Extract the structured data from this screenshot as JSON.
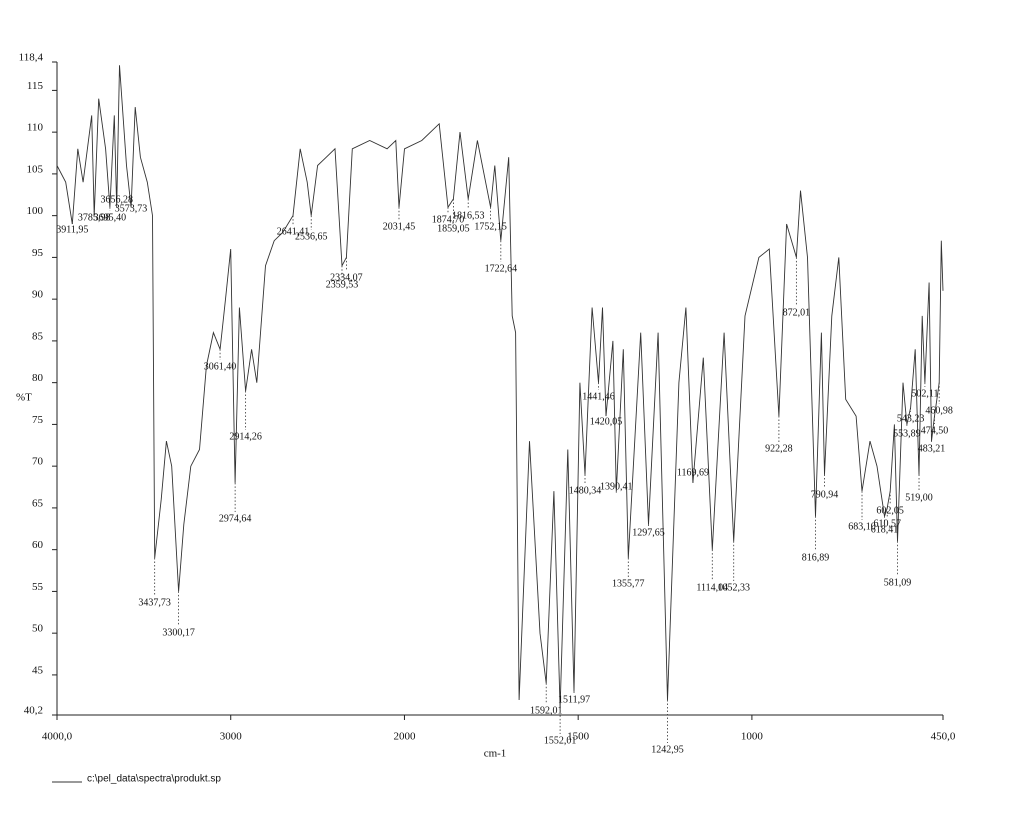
{
  "chart_data": {
    "type": "line",
    "x_label": "cm-1",
    "y_label": "%T",
    "xlim": [
      4000,
      450
    ],
    "x_scale_change": 2000,
    "xticks": [
      {
        "value": 4000,
        "label": "4000,0"
      },
      3000,
      2000,
      1500,
      1000,
      {
        "value": 450,
        "label": "450,0"
      }
    ],
    "ylim": [
      40.2,
      118.4
    ],
    "yticks": [
      {
        "value": 40.2,
        "label": "40,2"
      },
      45,
      50,
      55,
      60,
      65,
      70,
      75,
      80,
      85,
      90,
      95,
      100,
      105,
      110,
      115,
      {
        "value": 118.4,
        "label": "118,4"
      }
    ],
    "x": [
      4000,
      3950,
      3911.95,
      3880,
      3850,
      3800,
      3785.98,
      3760,
      3720,
      3695.4,
      3670,
      3656.28,
      3640,
      3600,
      3573.73,
      3550,
      3520,
      3480,
      3450,
      3437.73,
      3400,
      3370,
      3340,
      3300.17,
      3270,
      3230,
      3180,
      3140,
      3100,
      3061.4,
      3030,
      3000,
      2974.64,
      2950,
      2914.26,
      2880,
      2850,
      2800,
      2750,
      2700,
      2641.41,
      2600,
      2560,
      2536.65,
      2500,
      2450,
      2400,
      2359.53,
      2334.07,
      2300,
      2200,
      2100,
      2050,
      2031.45,
      2000,
      1950,
      1900,
      1874.7,
      1859.05,
      1840,
      1816.53,
      1790,
      1752.15,
      1740,
      1722.64,
      1700,
      1690,
      1680,
      1670,
      1640,
      1610,
      1592.01,
      1570,
      1552.01,
      1530,
      1511.97,
      1495,
      1480.34,
      1460,
      1441.46,
      1430,
      1420.05,
      1400,
      1390.41,
      1370,
      1355.77,
      1320,
      1297.65,
      1270,
      1242.95,
      1210,
      1190,
      1169.69,
      1140,
      1114.04,
      1080,
      1052.33,
      1020,
      980,
      950,
      922.28,
      900,
      872.01,
      860,
      840,
      816.89,
      800,
      790.94,
      770,
      750,
      730,
      700,
      683.1,
      660,
      640,
      618.41,
      610.57,
      602.05,
      590,
      581.09,
      565,
      553.89,
      543.23,
      530,
      519,
      510,
      502.11,
      490,
      483.21,
      474.5,
      460.98,
      455,
      450
    ],
    "series": [
      {
        "name": "c:\\pel_data\\spectra\\produkt.sp",
        "color": "#333333",
        "values": [
          106,
          104,
          99,
          108,
          104,
          112,
          100,
          114,
          108,
          101,
          112,
          101,
          118,
          106,
          101,
          113,
          107,
          104,
          100,
          59,
          66,
          73,
          70,
          55,
          63,
          70,
          72,
          82,
          86,
          84,
          90,
          96,
          68,
          89,
          79,
          84,
          80,
          94,
          97,
          98,
          100,
          108,
          104,
          100,
          106,
          107,
          108,
          94,
          95,
          108,
          109,
          108,
          109,
          101,
          108,
          109,
          111,
          101,
          102,
          110,
          102,
          109,
          101,
          106,
          97,
          107,
          88,
          86,
          42,
          73,
          50,
          44,
          67,
          41,
          72,
          43,
          80,
          69,
          89,
          80,
          89,
          76,
          85,
          67,
          84,
          59,
          86,
          63,
          86,
          42,
          80,
          89,
          68,
          83,
          60,
          86,
          61,
          88,
          95,
          96,
          76,
          99,
          95,
          103,
          95,
          64,
          86,
          69,
          88,
          95,
          78,
          76,
          67,
          73,
          70,
          64,
          65,
          67,
          75,
          61,
          80,
          75,
          77,
          84,
          69,
          88,
          80,
          92,
          73,
          76,
          80,
          97,
          91
        ]
      }
    ],
    "peaks": [
      {
        "value": 3911.95,
        "label": "3911,95"
      },
      {
        "value": 3785.98,
        "label": "3785,98"
      },
      {
        "value": 3695.4,
        "label": "3695,40"
      },
      {
        "value": 3656.28,
        "label": "3656,28"
      },
      {
        "value": 3573.73,
        "label": "3573,73"
      },
      {
        "value": 3437.73,
        "label": "3437,73"
      },
      {
        "value": 3300.17,
        "label": "3300,17"
      },
      {
        "value": 3061.4,
        "label": "3061,40"
      },
      {
        "value": 2974.64,
        "label": "2974,64"
      },
      {
        "value": 2914.26,
        "label": "2914,26"
      },
      {
        "value": 2641.41,
        "label": "2641,41"
      },
      {
        "value": 2536.65,
        "label": "2536,65"
      },
      {
        "value": 2359.53,
        "label": "2359,53"
      },
      {
        "value": 2334.07,
        "label": "2334,07"
      },
      {
        "value": 2031.45,
        "label": "2031,45"
      },
      {
        "value": 1874.7,
        "label": "1874,70"
      },
      {
        "value": 1859.05,
        "label": "1859,05"
      },
      {
        "value": 1816.53,
        "label": "1816,53"
      },
      {
        "value": 1752.15,
        "label": "1752,15"
      },
      {
        "value": 1722.64,
        "label": "1722,64"
      },
      {
        "value": 1592.01,
        "label": "1592,01"
      },
      {
        "value": 1552.01,
        "label": "1552,01"
      },
      {
        "value": 1511.97,
        "label": "1511,97"
      },
      {
        "value": 1480.34,
        "label": "1480,34"
      },
      {
        "value": 1441.46,
        "label": "1441,46"
      },
      {
        "value": 1420.05,
        "label": "1420,05"
      },
      {
        "value": 1390.41,
        "label": "1390,41"
      },
      {
        "value": 1355.77,
        "label": "1355,77"
      },
      {
        "value": 1297.65,
        "label": "1297,65"
      },
      {
        "value": 1242.95,
        "label": "1242,95"
      },
      {
        "value": 1169.69,
        "label": "1169,69"
      },
      {
        "value": 1114.04,
        "label": "1114,04"
      },
      {
        "value": 1052.33,
        "label": "1052,33"
      },
      {
        "value": 922.28,
        "label": "922,28"
      },
      {
        "value": 872.01,
        "label": "872,01"
      },
      {
        "value": 816.89,
        "label": "816,89"
      },
      {
        "value": 790.94,
        "label": "790,94"
      },
      {
        "value": 683.1,
        "label": "683,10"
      },
      {
        "value": 618.41,
        "label": "618,41"
      },
      {
        "value": 610.57,
        "label": "610,57"
      },
      {
        "value": 602.05,
        "label": "602,05"
      },
      {
        "value": 581.09,
        "label": "581,09"
      },
      {
        "value": 553.89,
        "label": "553,89"
      },
      {
        "value": 543.23,
        "label": "543,23"
      },
      {
        "value": 519,
        "label": "519,00"
      },
      {
        "value": 502.11,
        "label": "502,11"
      },
      {
        "value": 483.21,
        "label": "483,21"
      },
      {
        "value": 474.5,
        "label": "474,50"
      },
      {
        "value": 460.98,
        "label": "460,98"
      }
    ]
  }
}
